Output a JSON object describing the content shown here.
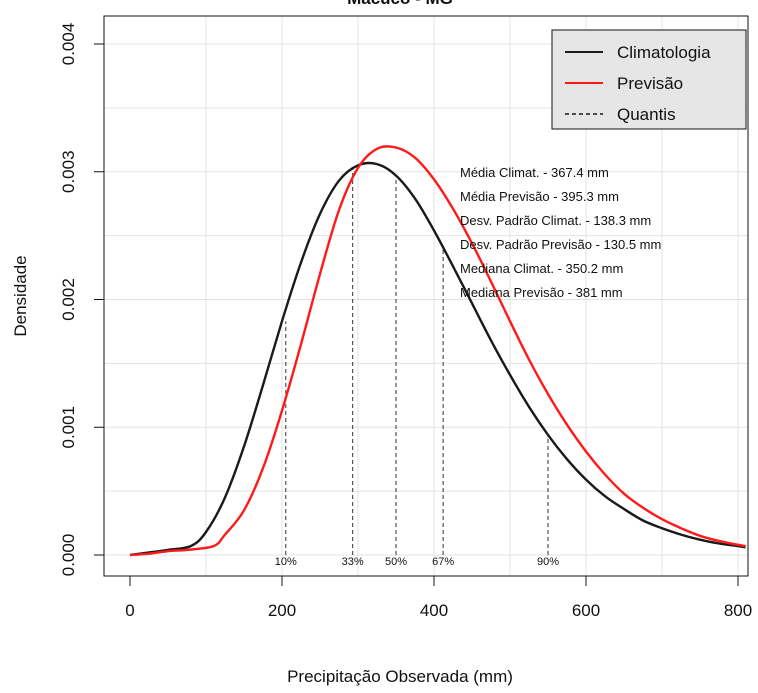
{
  "chart_data": {
    "type": "line",
    "title": "Macuco - MG",
    "xlabel": "Precipitação Observada (mm)",
    "ylabel": "Densidade",
    "xlim": [
      0,
      800
    ],
    "ylim": [
      0,
      0.004
    ],
    "x_ticks": [
      "0",
      "200",
      "400",
      "600",
      "800"
    ],
    "y_ticks": [
      "0.000",
      "0.001",
      "0.002",
      "0.003",
      "0.004"
    ],
    "grid": true,
    "legend_position": "top-right",
    "legend": [
      {
        "label": "Climatologia",
        "color": "#1a1a1a",
        "style": "solid"
      },
      {
        "label": "Previsão",
        "color": "#ff1a1a",
        "style": "solid"
      },
      {
        "label": "Quantis",
        "color": "#1a1a1a",
        "style": "dashed"
      }
    ],
    "series": [
      {
        "name": "Climatologia",
        "color": "#1a1a1a",
        "x": [
          0,
          25,
          50,
          80,
          100,
          125,
          150,
          175,
          200,
          225,
          250,
          275,
          300,
          325,
          350,
          375,
          400,
          425,
          450,
          475,
          500,
          525,
          550,
          575,
          600,
          625,
          650,
          675,
          700,
          725,
          750,
          775,
          800,
          810
        ],
        "y": [
          0,
          2e-05,
          4e-05,
          7e-05,
          0.00018,
          0.00045,
          0.00085,
          0.00133,
          0.00183,
          0.00229,
          0.00267,
          0.00293,
          0.00305,
          0.00306,
          0.00297,
          0.00279,
          0.00254,
          0.00226,
          0.00197,
          0.00168,
          0.00141,
          0.00116,
          0.00094,
          0.00075,
          0.00059,
          0.00046,
          0.00036,
          0.00027,
          0.00021,
          0.00016,
          0.00012,
          9e-05,
          7e-05,
          6e-05
        ]
      },
      {
        "name": "Previsão",
        "color": "#ff1a1a",
        "x": [
          0,
          25,
          50,
          75,
          110,
          125,
          150,
          175,
          200,
          225,
          250,
          275,
          300,
          325,
          350,
          375,
          400,
          425,
          450,
          475,
          500,
          525,
          550,
          575,
          600,
          625,
          650,
          675,
          700,
          725,
          750,
          775,
          800,
          810
        ],
        "y": [
          0,
          1e-05,
          3e-05,
          4e-05,
          7e-05,
          0.00016,
          0.00035,
          0.00068,
          0.00113,
          0.00165,
          0.0022,
          0.0027,
          0.00303,
          0.00318,
          0.00319,
          0.00311,
          0.00294,
          0.00271,
          0.00244,
          0.00214,
          0.00183,
          0.00153,
          0.00126,
          0.00102,
          0.00081,
          0.00063,
          0.00048,
          0.00037,
          0.00028,
          0.00021,
          0.00015,
          0.00011,
          8e-05,
          7e-05
        ]
      }
    ],
    "quantiles": [
      {
        "label": "10%",
        "x": 205,
        "y": 0.00183
      },
      {
        "label": "33%",
        "x": 293,
        "y": 0.00303
      },
      {
        "label": "50%",
        "x": 350,
        "y": 0.00298
      },
      {
        "label": "67%",
        "x": 412,
        "y": 0.0024
      },
      {
        "label": "90%",
        "x": 550,
        "y": 0.00094
      }
    ],
    "annotations": [
      "Média Climat. - 367.4 mm",
      "Média Previsão - 395.3 mm",
      "Desv. Padrão Climat. -  138.3  mm",
      "Desv. Padrão Previsão -  130.5  mm",
      "Mediana Climat. -  350.2  mm",
      "Mediana Previsão -  381  mm"
    ]
  }
}
